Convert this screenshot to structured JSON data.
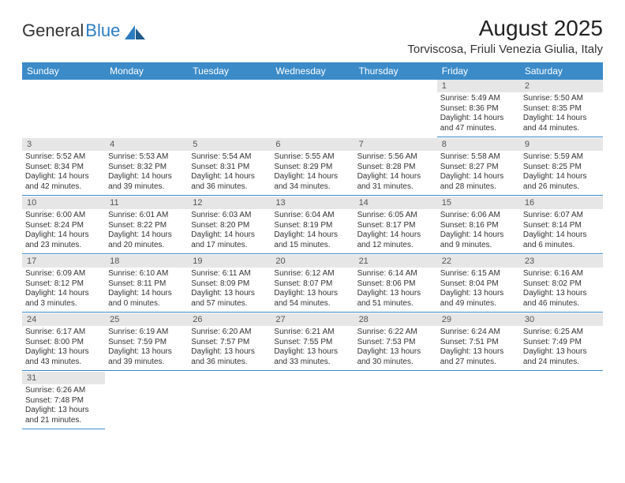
{
  "brand": {
    "general": "General",
    "blue": "Blue"
  },
  "header": {
    "month_title": "August 2025",
    "location": "Torviscosa, Friuli Venezia Giulia, Italy"
  },
  "colors": {
    "header_bg": "#3b8bc8",
    "header_fg": "#ffffff",
    "daynum_bg": "#e6e6e6",
    "cell_rule": "#3b8bc8",
    "logo_blue": "#2d7cc0"
  },
  "daynames": [
    "Sunday",
    "Monday",
    "Tuesday",
    "Wednesday",
    "Thursday",
    "Friday",
    "Saturday"
  ],
  "weeks": [
    [
      null,
      null,
      null,
      null,
      null,
      {
        "n": "1",
        "sr": "Sunrise: 5:49 AM",
        "ss": "Sunset: 8:36 PM",
        "d1": "Daylight: 14 hours",
        "d2": "and 47 minutes."
      },
      {
        "n": "2",
        "sr": "Sunrise: 5:50 AM",
        "ss": "Sunset: 8:35 PM",
        "d1": "Daylight: 14 hours",
        "d2": "and 44 minutes."
      }
    ],
    [
      {
        "n": "3",
        "sr": "Sunrise: 5:52 AM",
        "ss": "Sunset: 8:34 PM",
        "d1": "Daylight: 14 hours",
        "d2": "and 42 minutes."
      },
      {
        "n": "4",
        "sr": "Sunrise: 5:53 AM",
        "ss": "Sunset: 8:32 PM",
        "d1": "Daylight: 14 hours",
        "d2": "and 39 minutes."
      },
      {
        "n": "5",
        "sr": "Sunrise: 5:54 AM",
        "ss": "Sunset: 8:31 PM",
        "d1": "Daylight: 14 hours",
        "d2": "and 36 minutes."
      },
      {
        "n": "6",
        "sr": "Sunrise: 5:55 AM",
        "ss": "Sunset: 8:29 PM",
        "d1": "Daylight: 14 hours",
        "d2": "and 34 minutes."
      },
      {
        "n": "7",
        "sr": "Sunrise: 5:56 AM",
        "ss": "Sunset: 8:28 PM",
        "d1": "Daylight: 14 hours",
        "d2": "and 31 minutes."
      },
      {
        "n": "8",
        "sr": "Sunrise: 5:58 AM",
        "ss": "Sunset: 8:27 PM",
        "d1": "Daylight: 14 hours",
        "d2": "and 28 minutes."
      },
      {
        "n": "9",
        "sr": "Sunrise: 5:59 AM",
        "ss": "Sunset: 8:25 PM",
        "d1": "Daylight: 14 hours",
        "d2": "and 26 minutes."
      }
    ],
    [
      {
        "n": "10",
        "sr": "Sunrise: 6:00 AM",
        "ss": "Sunset: 8:24 PM",
        "d1": "Daylight: 14 hours",
        "d2": "and 23 minutes."
      },
      {
        "n": "11",
        "sr": "Sunrise: 6:01 AM",
        "ss": "Sunset: 8:22 PM",
        "d1": "Daylight: 14 hours",
        "d2": "and 20 minutes."
      },
      {
        "n": "12",
        "sr": "Sunrise: 6:03 AM",
        "ss": "Sunset: 8:20 PM",
        "d1": "Daylight: 14 hours",
        "d2": "and 17 minutes."
      },
      {
        "n": "13",
        "sr": "Sunrise: 6:04 AM",
        "ss": "Sunset: 8:19 PM",
        "d1": "Daylight: 14 hours",
        "d2": "and 15 minutes."
      },
      {
        "n": "14",
        "sr": "Sunrise: 6:05 AM",
        "ss": "Sunset: 8:17 PM",
        "d1": "Daylight: 14 hours",
        "d2": "and 12 minutes."
      },
      {
        "n": "15",
        "sr": "Sunrise: 6:06 AM",
        "ss": "Sunset: 8:16 PM",
        "d1": "Daylight: 14 hours",
        "d2": "and 9 minutes."
      },
      {
        "n": "16",
        "sr": "Sunrise: 6:07 AM",
        "ss": "Sunset: 8:14 PM",
        "d1": "Daylight: 14 hours",
        "d2": "and 6 minutes."
      }
    ],
    [
      {
        "n": "17",
        "sr": "Sunrise: 6:09 AM",
        "ss": "Sunset: 8:12 PM",
        "d1": "Daylight: 14 hours",
        "d2": "and 3 minutes."
      },
      {
        "n": "18",
        "sr": "Sunrise: 6:10 AM",
        "ss": "Sunset: 8:11 PM",
        "d1": "Daylight: 14 hours",
        "d2": "and 0 minutes."
      },
      {
        "n": "19",
        "sr": "Sunrise: 6:11 AM",
        "ss": "Sunset: 8:09 PM",
        "d1": "Daylight: 13 hours",
        "d2": "and 57 minutes."
      },
      {
        "n": "20",
        "sr": "Sunrise: 6:12 AM",
        "ss": "Sunset: 8:07 PM",
        "d1": "Daylight: 13 hours",
        "d2": "and 54 minutes."
      },
      {
        "n": "21",
        "sr": "Sunrise: 6:14 AM",
        "ss": "Sunset: 8:06 PM",
        "d1": "Daylight: 13 hours",
        "d2": "and 51 minutes."
      },
      {
        "n": "22",
        "sr": "Sunrise: 6:15 AM",
        "ss": "Sunset: 8:04 PM",
        "d1": "Daylight: 13 hours",
        "d2": "and 49 minutes."
      },
      {
        "n": "23",
        "sr": "Sunrise: 6:16 AM",
        "ss": "Sunset: 8:02 PM",
        "d1": "Daylight: 13 hours",
        "d2": "and 46 minutes."
      }
    ],
    [
      {
        "n": "24",
        "sr": "Sunrise: 6:17 AM",
        "ss": "Sunset: 8:00 PM",
        "d1": "Daylight: 13 hours",
        "d2": "and 43 minutes."
      },
      {
        "n": "25",
        "sr": "Sunrise: 6:19 AM",
        "ss": "Sunset: 7:59 PM",
        "d1": "Daylight: 13 hours",
        "d2": "and 39 minutes."
      },
      {
        "n": "26",
        "sr": "Sunrise: 6:20 AM",
        "ss": "Sunset: 7:57 PM",
        "d1": "Daylight: 13 hours",
        "d2": "and 36 minutes."
      },
      {
        "n": "27",
        "sr": "Sunrise: 6:21 AM",
        "ss": "Sunset: 7:55 PM",
        "d1": "Daylight: 13 hours",
        "d2": "and 33 minutes."
      },
      {
        "n": "28",
        "sr": "Sunrise: 6:22 AM",
        "ss": "Sunset: 7:53 PM",
        "d1": "Daylight: 13 hours",
        "d2": "and 30 minutes."
      },
      {
        "n": "29",
        "sr": "Sunrise: 6:24 AM",
        "ss": "Sunset: 7:51 PM",
        "d1": "Daylight: 13 hours",
        "d2": "and 27 minutes."
      },
      {
        "n": "30",
        "sr": "Sunrise: 6:25 AM",
        "ss": "Sunset: 7:49 PM",
        "d1": "Daylight: 13 hours",
        "d2": "and 24 minutes."
      }
    ],
    [
      {
        "n": "31",
        "sr": "Sunrise: 6:26 AM",
        "ss": "Sunset: 7:48 PM",
        "d1": "Daylight: 13 hours",
        "d2": "and 21 minutes."
      },
      null,
      null,
      null,
      null,
      null,
      null
    ]
  ]
}
